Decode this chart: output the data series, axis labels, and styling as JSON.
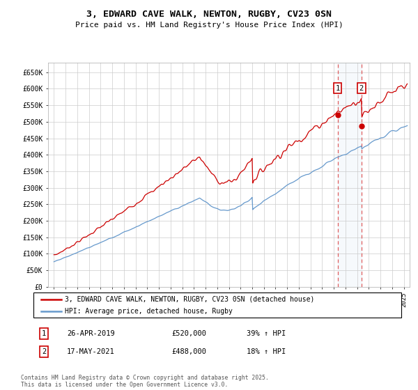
{
  "title": "3, EDWARD CAVE WALK, NEWTON, RUGBY, CV23 0SN",
  "subtitle": "Price paid vs. HM Land Registry's House Price Index (HPI)",
  "yticks": [
    0,
    50000,
    100000,
    150000,
    200000,
    250000,
    300000,
    350000,
    400000,
    450000,
    500000,
    550000,
    600000,
    650000
  ],
  "ylim": [
    0,
    680000
  ],
  "xlim_start": 1994.5,
  "xlim_end": 2025.5,
  "xticks": [
    1995,
    1996,
    1997,
    1998,
    1999,
    2000,
    2001,
    2002,
    2003,
    2004,
    2005,
    2006,
    2007,
    2008,
    2009,
    2010,
    2011,
    2012,
    2013,
    2014,
    2015,
    2016,
    2017,
    2018,
    2019,
    2020,
    2021,
    2022,
    2023,
    2024,
    2025
  ],
  "legend_line1": "3, EDWARD CAVE WALK, NEWTON, RUGBY, CV23 0SN (detached house)",
  "legend_line2": "HPI: Average price, detached house, Rugby",
  "line1_color": "#cc0000",
  "line2_color": "#6699cc",
  "ann1_year": 2019.32,
  "ann1_value": 520000,
  "ann1_label": "1",
  "ann1_date": "26-APR-2019",
  "ann1_price": "£520,000",
  "ann1_hpi": "39% ↑ HPI",
  "ann2_year": 2021.37,
  "ann2_value": 488000,
  "ann2_label": "2",
  "ann2_date": "17-MAY-2021",
  "ann2_price": "£488,000",
  "ann2_hpi": "18% ↑ HPI",
  "footer": "Contains HM Land Registry data © Crown copyright and database right 2025.\nThis data is licensed under the Open Government Licence v3.0.",
  "background_color": "#ffffff",
  "grid_color": "#cccccc",
  "dashed_color": "#dd4444",
  "shade_color": "#dde8f5"
}
